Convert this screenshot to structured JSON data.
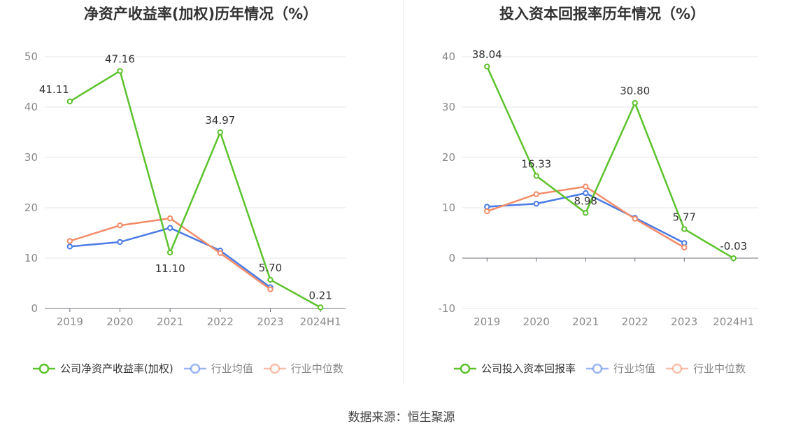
{
  "source_label": "数据来源：恒生聚源",
  "chart_data": [
    {
      "type": "line",
      "title": "净资产收益率(加权)历年情况（%）",
      "categories": [
        "2019",
        "2020",
        "2021",
        "2022",
        "2023",
        "2024H1"
      ],
      "ylim": [
        0,
        50
      ],
      "yticks": [
        0,
        10,
        20,
        30,
        40,
        50
      ],
      "grid": true,
      "legend_position": "bottom",
      "series": [
        {
          "name": "公司净资产收益率(加权)",
          "color": "#5cc22b",
          "values": [
            41.11,
            47.16,
            11.1,
            34.97,
            5.7,
            0.21
          ],
          "labels": [
            "41.11",
            "47.16",
            "11.10",
            "34.97",
            "5.70",
            "0.21"
          ]
        },
        {
          "name": "行业均值",
          "color": "#4b7be5",
          "values": [
            12.3,
            13.2,
            16.0,
            11.5,
            4.2,
            null
          ]
        },
        {
          "name": "行业中位数",
          "color": "#f28c68",
          "values": [
            13.4,
            16.5,
            17.9,
            11.0,
            3.8,
            null
          ]
        }
      ]
    },
    {
      "type": "line",
      "title": "投入资本回报率历年情况（%）",
      "categories": [
        "2019",
        "2020",
        "2021",
        "2022",
        "2023",
        "2024H1"
      ],
      "ylim": [
        -10,
        40
      ],
      "yticks": [
        -10,
        0,
        10,
        20,
        30,
        40
      ],
      "grid": true,
      "legend_position": "bottom",
      "series": [
        {
          "name": "公司投入资本回报率",
          "color": "#5cc22b",
          "values": [
            38.04,
            16.33,
            8.98,
            30.8,
            5.77,
            -0.03
          ],
          "labels": [
            "38.04",
            "16.33",
            "8.98",
            "30.80",
            "5.77",
            "-0.03"
          ]
        },
        {
          "name": "行业均值",
          "color": "#4b7be5",
          "values": [
            10.2,
            10.8,
            12.9,
            8.0,
            3.0,
            null
          ]
        },
        {
          "name": "行业中位数",
          "color": "#f28c68",
          "values": [
            9.3,
            12.7,
            14.2,
            7.8,
            2.1,
            null
          ]
        }
      ]
    }
  ]
}
